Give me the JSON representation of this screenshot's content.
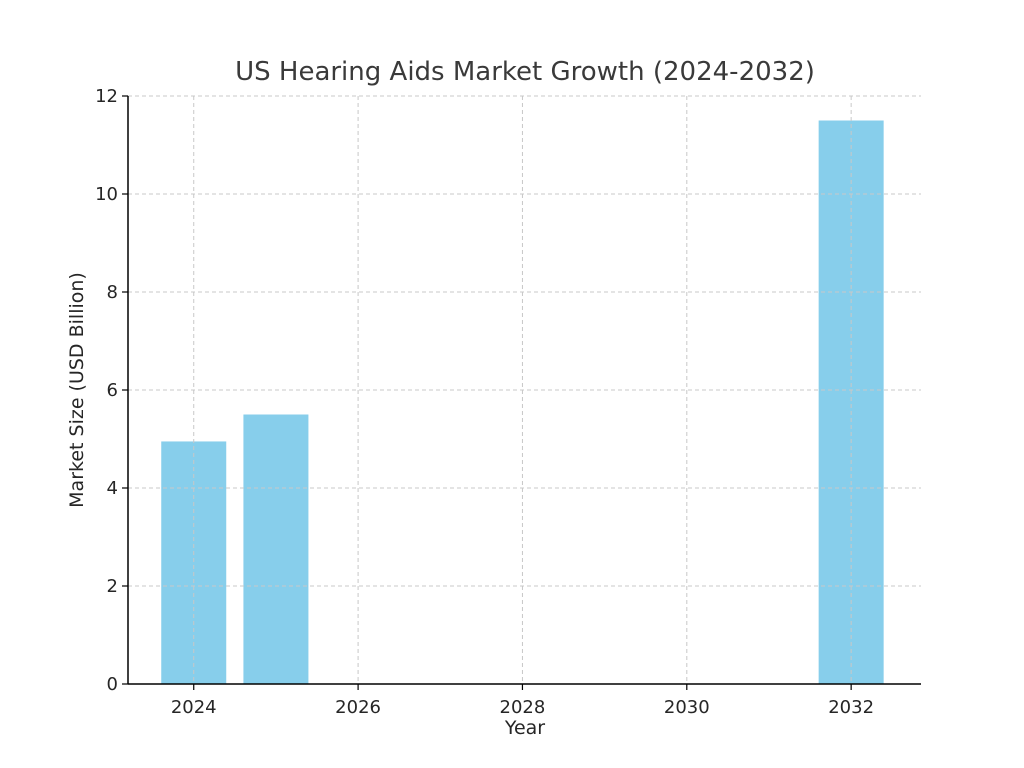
{
  "chart_data": {
    "type": "bar",
    "title": "US Hearing Aids Market Growth (2024-2032)",
    "xlabel": "Year",
    "ylabel": "Market Size (USD Billion)",
    "x": [
      2024,
      2025,
      2032
    ],
    "values": [
      4.95,
      5.5,
      11.5
    ],
    "xlim": [
      2023.2,
      2032.85
    ],
    "ylim": [
      0,
      12
    ],
    "xticks": [
      2024,
      2026,
      2028,
      2030,
      2032
    ],
    "yticks": [
      0,
      2,
      4,
      6,
      8,
      10,
      12
    ],
    "grid": true,
    "bar_color": "#87ceeb",
    "grid_color": "#c8c8c8",
    "axis_color": "#000000"
  }
}
